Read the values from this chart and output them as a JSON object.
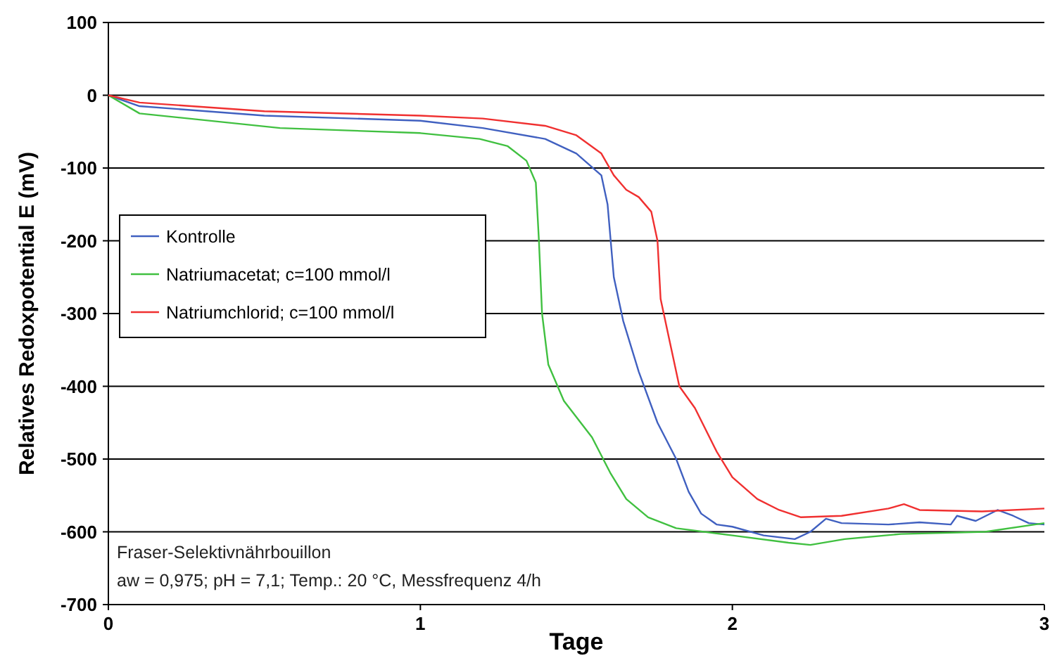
{
  "chart_data": {
    "type": "line",
    "xlabel": "Tage",
    "ylabel": "Relatives Redoxpotential E (mV)",
    "xlim": [
      0,
      3
    ],
    "xticks": [
      0,
      1,
      2,
      3
    ],
    "ylim": [
      -700,
      100
    ],
    "yticks": [
      100,
      0,
      -100,
      -200,
      -300,
      -400,
      -500,
      -600,
      -700
    ],
    "grid": "y",
    "legend": "left",
    "line_style": "solid",
    "annotations": [
      "Fraser-Selektivnährbouillon",
      "aw = 0,975; pH = 7,1; Temp.: 20 °C, Messfrequenz 4/h"
    ],
    "series": [
      {
        "name": "Kontrolle",
        "color": "#4060c0",
        "x": [
          0,
          0.1,
          0.5,
          1.0,
          1.2,
          1.4,
          1.5,
          1.58,
          1.6,
          1.62,
          1.65,
          1.7,
          1.76,
          1.82,
          1.86,
          1.9,
          1.95,
          2.0,
          2.1,
          2.2,
          2.25,
          2.3,
          2.35,
          2.5,
          2.6,
          2.7,
          2.72,
          2.78,
          2.85,
          2.9,
          2.95,
          3.0
        ],
        "values": [
          0,
          -15,
          -28,
          -35,
          -45,
          -60,
          -80,
          -110,
          -150,
          -250,
          -310,
          -380,
          -450,
          -500,
          -545,
          -575,
          -590,
          -593,
          -605,
          -610,
          -600,
          -582,
          -588,
          -590,
          -587,
          -590,
          -578,
          -585,
          -570,
          -578,
          -588,
          -590
        ]
      },
      {
        "name": "Natriumacetat; c=100 mmol/l",
        "color": "#40c040",
        "x": [
          0,
          0.1,
          0.55,
          1.0,
          1.19,
          1.28,
          1.34,
          1.37,
          1.38,
          1.39,
          1.41,
          1.46,
          1.55,
          1.61,
          1.66,
          1.73,
          1.82,
          2.0,
          2.18,
          2.25,
          2.36,
          2.54,
          2.81,
          3.0
        ],
        "values": [
          0,
          -25,
          -45,
          -52,
          -60,
          -70,
          -90,
          -120,
          -200,
          -300,
          -370,
          -420,
          -470,
          -520,
          -555,
          -580,
          -595,
          -605,
          -615,
          -618,
          -610,
          -603,
          -600,
          -588
        ]
      },
      {
        "name": "Natriumchlorid; c=100 mmol/l",
        "color": "#f03030",
        "x": [
          0,
          0.1,
          0.5,
          1.0,
          1.2,
          1.4,
          1.5,
          1.58,
          1.62,
          1.66,
          1.7,
          1.74,
          1.76,
          1.77,
          1.8,
          1.83,
          1.88,
          1.95,
          2.0,
          2.08,
          2.15,
          2.22,
          2.35,
          2.5,
          2.55,
          2.6,
          2.8,
          3.0
        ],
        "values": [
          0,
          -10,
          -22,
          -28,
          -32,
          -42,
          -55,
          -80,
          -110,
          -130,
          -140,
          -160,
          -200,
          -280,
          -340,
          -400,
          -430,
          -490,
          -525,
          -555,
          -570,
          -580,
          -578,
          -568,
          -562,
          -570,
          -572,
          -568
        ]
      }
    ]
  }
}
